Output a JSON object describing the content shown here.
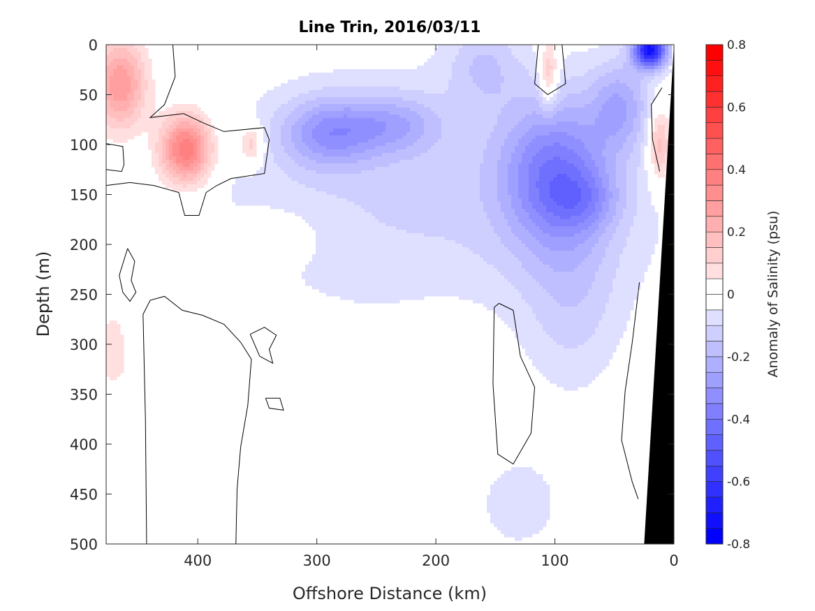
{
  "chart_data": {
    "type": "heatmap",
    "subtype": "filled-contour",
    "title": "Line Trin, 2016/03/11",
    "xlabel": "Offshore Distance (km)",
    "ylabel": "Depth (m)",
    "xlim": [
      477,
      0
    ],
    "ylim": [
      0,
      500
    ],
    "x_reversed": true,
    "y_reversed": true,
    "xticks": [
      400,
      300,
      200,
      100,
      0
    ],
    "xtick_labels": [
      "400",
      "300",
      "200",
      "100",
      "0"
    ],
    "yticks": [
      0,
      50,
      100,
      150,
      200,
      250,
      300,
      350,
      400,
      450,
      500
    ],
    "ytick_labels": [
      "0",
      "50",
      "100",
      "150",
      "200",
      "250",
      "300",
      "350",
      "400",
      "450",
      "500"
    ],
    "colorbar": {
      "label": "Anomaly of Salinity (psu)",
      "range": [
        -0.8,
        0.8
      ],
      "level_step": 0.05,
      "ticks": [
        0.8,
        0.6,
        0.4,
        0.2,
        0,
        -0.2,
        -0.4,
        -0.6,
        -0.8
      ],
      "tick_labels": [
        "0.8",
        "0.6",
        "0.4",
        "0.2",
        "0",
        "-0.2",
        "-0.4",
        "-0.6",
        "-0.8"
      ],
      "colormap": "blue-white-red",
      "positive_color": "#ff0000",
      "negative_color": "#0000ff"
    },
    "anomaly_features": [
      {
        "x_km": 200,
        "depth_m": 150,
        "value": -0.11,
        "rx_km": 210,
        "ry_m": 130
      },
      {
        "x_km": 465,
        "depth_m": 40,
        "value": 0.3,
        "rx_km": 22,
        "ry_m": 45
      },
      {
        "x_km": 410,
        "depth_m": 105,
        "value": 0.42,
        "rx_km": 22,
        "ry_m": 35
      },
      {
        "x_km": 355,
        "depth_m": 100,
        "value": 0.18,
        "rx_km": 10,
        "ry_m": 20
      },
      {
        "x_km": 290,
        "depth_m": 88,
        "value": -0.25,
        "rx_km": 40,
        "ry_m": 35
      },
      {
        "x_km": 235,
        "depth_m": 80,
        "value": -0.17,
        "rx_km": 40,
        "ry_m": 30
      },
      {
        "x_km": 100,
        "depth_m": 130,
        "value": -0.32,
        "rx_km": 45,
        "ry_m": 75
      },
      {
        "x_km": 75,
        "depth_m": 155,
        "value": -0.12,
        "rx_km": 30,
        "ry_m": 30
      },
      {
        "x_km": 85,
        "depth_m": 260,
        "value": -0.1,
        "rx_km": 40,
        "ry_m": 90
      },
      {
        "x_km": 20,
        "depth_m": 5,
        "value": -0.7,
        "rx_km": 14,
        "ry_m": 18
      },
      {
        "x_km": 45,
        "depth_m": 60,
        "value": -0.2,
        "rx_km": 25,
        "ry_m": 45
      },
      {
        "x_km": 160,
        "depth_m": 20,
        "value": -0.12,
        "rx_km": 30,
        "ry_m": 40
      },
      {
        "x_km": 105,
        "depth_m": 30,
        "value": 0.2,
        "rx_km": 8,
        "ry_m": 35
      },
      {
        "x_km": 12,
        "depth_m": 100,
        "value": 0.22,
        "rx_km": 10,
        "ry_m": 40
      },
      {
        "x_km": 470,
        "depth_m": 420,
        "value": -0.07,
        "rx_km": 15,
        "ry_m": 50
      },
      {
        "x_km": 130,
        "depth_m": 460,
        "value": -0.07,
        "rx_km": 45,
        "ry_m": 60
      },
      {
        "x_km": 195,
        "depth_m": 300,
        "value": 0.06,
        "rx_km": 35,
        "ry_m": 35
      },
      {
        "x_km": 330,
        "depth_m": 190,
        "value": 0.05,
        "rx_km": 40,
        "ry_m": 30
      },
      {
        "x_km": 470,
        "depth_m": 300,
        "value": 0.06,
        "rx_km": 30,
        "ry_m": 150
      }
    ],
    "zero_contours": [
      [
        [
          421,
          0
        ],
        [
          419,
          32
        ],
        [
          428,
          60
        ],
        [
          440,
          73
        ],
        [
          412,
          69
        ],
        [
          396,
          78
        ],
        [
          378,
          87
        ],
        [
          344,
          83
        ],
        [
          340,
          95
        ],
        [
          344,
          129
        ],
        [
          372,
          134
        ],
        [
          384,
          141
        ],
        [
          393,
          148
        ],
        [
          399,
          171
        ],
        [
          411,
          171
        ],
        [
          416,
          148
        ],
        [
          437,
          141
        ],
        [
          457,
          138
        ],
        [
          477,
          141
        ]
      ],
      [
        [
          477,
          99
        ],
        [
          463,
          102
        ],
        [
          462,
          120
        ],
        [
          464,
          127
        ],
        [
          477,
          125
        ]
      ],
      [
        [
          459,
          204
        ],
        [
          466,
          231
        ],
        [
          463,
          248
        ],
        [
          457,
          257
        ],
        [
          452,
          248
        ],
        [
          456,
          236
        ],
        [
          453,
          217
        ],
        [
          459,
          204
        ]
      ],
      [
        [
          443,
          500
        ],
        [
          444,
          375
        ],
        [
          446,
          270
        ],
        [
          440,
          256
        ],
        [
          428,
          252
        ],
        [
          413,
          266
        ],
        [
          396,
          271
        ],
        [
          378,
          280
        ],
        [
          364,
          298
        ],
        [
          355,
          315
        ],
        [
          358,
          361
        ],
        [
          364,
          403
        ],
        [
          367,
          445
        ],
        [
          368,
          500
        ]
      ],
      [
        [
          356,
          290
        ],
        [
          344,
          283
        ],
        [
          334,
          291
        ],
        [
          340,
          305
        ],
        [
          337,
          319
        ],
        [
          348,
          312
        ],
        [
          356,
          290
        ]
      ],
      [
        [
          343,
          354
        ],
        [
          331,
          354
        ],
        [
          328,
          366
        ],
        [
          340,
          364
        ],
        [
          343,
          354
        ]
      ],
      [
        [
          147,
          259
        ],
        [
          135,
          266
        ],
        [
          129,
          312
        ],
        [
          117,
          343
        ],
        [
          120,
          389
        ],
        [
          135,
          420
        ],
        [
          148,
          410
        ],
        [
          152,
          340
        ],
        [
          151,
          263
        ],
        [
          147,
          259
        ]
      ],
      [
        [
          114,
          0
        ],
        [
          117,
          39
        ],
        [
          106,
          50
        ],
        [
          91,
          39
        ],
        [
          94,
          0
        ]
      ],
      [
        [
          29,
          238
        ],
        [
          35,
          298
        ],
        [
          41,
          347
        ],
        [
          44,
          396
        ],
        [
          35,
          438
        ],
        [
          30,
          455
        ]
      ],
      [
        [
          10,
          43
        ],
        [
          19,
          60
        ],
        [
          18,
          95
        ],
        [
          12,
          127
        ]
      ]
    ],
    "bathymetry_polygon": [
      [
        0,
        0
      ],
      [
        0,
        500
      ],
      [
        25,
        500
      ]
    ],
    "bathymetry_color": "#000000"
  }
}
